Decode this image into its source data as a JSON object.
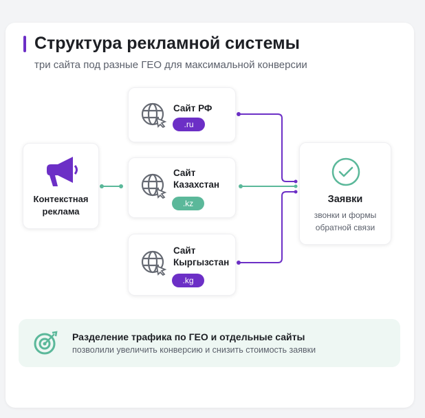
{
  "header": {
    "title": "Структура рекламной системы",
    "subtitle": "три сайта под разные ГЕО для максимальной конверсии"
  },
  "colors": {
    "purple": "#6c2fc6",
    "teal": "#5bb89a"
  },
  "source": {
    "label_line1": "Контекстная",
    "label_line2": "реклама",
    "icon": "megaphone-icon"
  },
  "sites": [
    {
      "line1": "Сайт РФ",
      "line2": "",
      "domain": ".ru",
      "color": "#6c2fc6",
      "icon": "globe-cursor-icon"
    },
    {
      "line1": "Сайт",
      "line2": "Казахстан",
      "domain": ".kz",
      "color": "#5bb89a",
      "icon": "globe-cursor-icon"
    },
    {
      "line1": "Сайт",
      "line2": "Кыргызстан",
      "domain": ".kg",
      "color": "#6c2fc6",
      "icon": "globe-cursor-icon"
    }
  ],
  "target": {
    "title": "Заявки",
    "sub_line1": "звонки и формы",
    "sub_line2": "обратной связи",
    "icon": "check-circle-icon"
  },
  "banner": {
    "title": "Разделение трафика по ГЕО и отдельные сайты",
    "text": "позволили увеличить конверсию и снизить стоимость заявки",
    "icon": "target-icon"
  }
}
